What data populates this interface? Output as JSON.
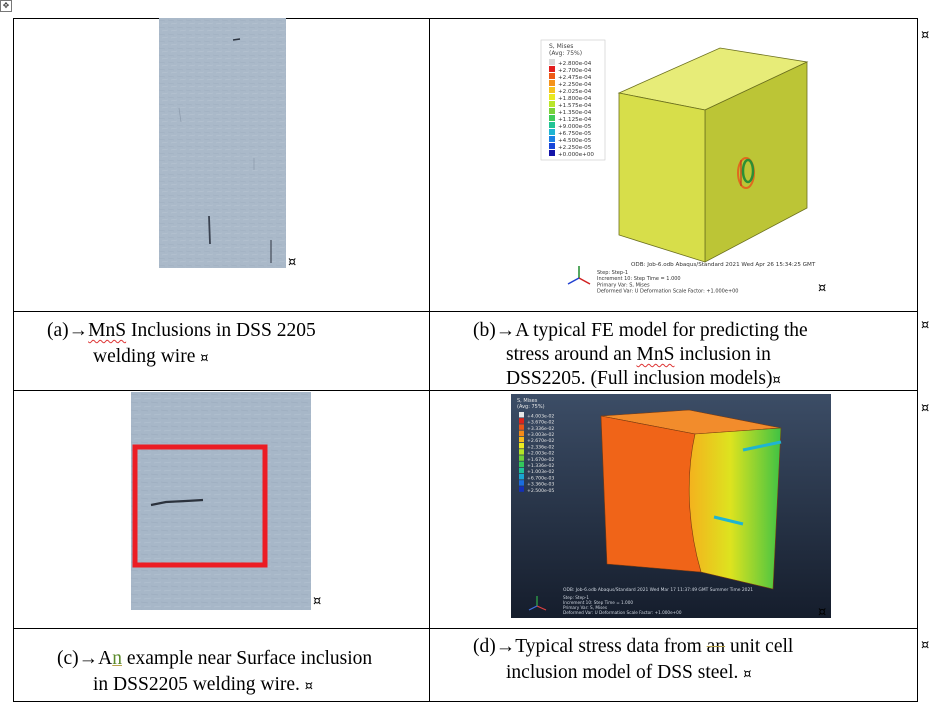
{
  "cells": {
    "a": {
      "prefix": "(a)",
      "line1_rest": "MnS Inclusions in DSS 2205 ",
      "squiggle_word": "MnS",
      "line2": "welding wire "
    },
    "b": {
      "prefix": "(b)",
      "line1": "A typical FE model for predicting the ",
      "line2_pre": "stress around an ",
      "squiggle_word": "MnS",
      "line2_post": " inclusion in ",
      "line3": "DSS2205. (Full inclusion models)"
    },
    "c": {
      "prefix": "(c)",
      "line1_pre": "A",
      "highlight": "n",
      "line1_post": " example near Surface inclusion ",
      "line2": "in DSS2205 welding wire. "
    },
    "d": {
      "prefix": "(d)",
      "line1_pre": "Typical stress data from ",
      "struck": "an",
      "line1_post": " unit cell ",
      "line2": "inclusion model of DSS steel. "
    }
  },
  "fe_b": {
    "legend_title": "S, Mises",
    "legend_sub": "(Avg: 75%)",
    "legend_values": [
      "+2.800e-04",
      "+2.700e-04",
      "+2.475e-04",
      "+2.250e-04",
      "+2.025e-04",
      "+1.800e-04",
      "+1.575e-04",
      "+1.350e-04",
      "+1.125e-04",
      "+9.000e-05",
      "+6.750e-05",
      "+4.500e-05",
      "+2.250e-05",
      "+0.000e+00"
    ],
    "legend_colors": [
      "#d9d9d9",
      "#e21e1e",
      "#ee5a16",
      "#f4921a",
      "#f6c31f",
      "#e9e922",
      "#b9e62a",
      "#7ad23b",
      "#3fcc5a",
      "#22c494",
      "#1fb4d2",
      "#1c80e4",
      "#1746d8",
      "#1414a8"
    ],
    "odb_line": "ODB: Job-6.odb    Abaqus/Standard 2021    Wed Apr 26 15:34:25 GMT",
    "step_lines": [
      "Step: Step-1",
      "Increment    10: Step Time =    1.000",
      "Primary Var: S, Mises",
      "Deformed Var: U   Deformation Scale Factor: +1.000e+00"
    ],
    "colors": {
      "front": "#d7de4a",
      "top": "#e7ec78",
      "side": "#bcc536",
      "edge": "#6b6f1e"
    }
  },
  "fe_d": {
    "legend_title": "S, Mises",
    "legend_sub": "(Avg: 75%)",
    "legend_values": [
      "+4.003e-02",
      "+3.670e-02",
      "+3.336e-02",
      "+3.003e-02",
      "+2.670e-02",
      "+2.336e-02",
      "+2.003e-02",
      "+1.670e-02",
      "+1.336e-02",
      "+1.003e-02",
      "+6.700e-03",
      "+3.360e-03",
      "+2.500e-05"
    ],
    "legend_colors": [
      "#e8e8e8",
      "#e0231a",
      "#ec5516",
      "#f48a18",
      "#f6bc1c",
      "#ecec20",
      "#b4e426",
      "#6fd03a",
      "#33c85c",
      "#1ec19a",
      "#1aa6d4",
      "#1a6de0",
      "#1430b8"
    ],
    "odb_line": "ODB: Job-6.odb    Abaqus/Standard 2021    Wed Mar 17 11:37:49 GMT Summer Time 2021",
    "step_lines": [
      "Step: Step-1",
      "Increment    10: Step Time =    1.000",
      "Primary Var: S, Mises",
      "Deformed Var: U   Deformation Scale Factor: +1.000e+00"
    ],
    "colors": {
      "bg_top": "#3c4d66",
      "bg_bottom": "#151d2c",
      "front": "#f06418",
      "top": "#f28c2c",
      "side_a": "#f4b21e",
      "side_b": "#dde31f",
      "side_c": "#3fc244"
    }
  },
  "micro": {
    "bg": "#a9b8c8",
    "highlight_box": "#ec1c24"
  }
}
